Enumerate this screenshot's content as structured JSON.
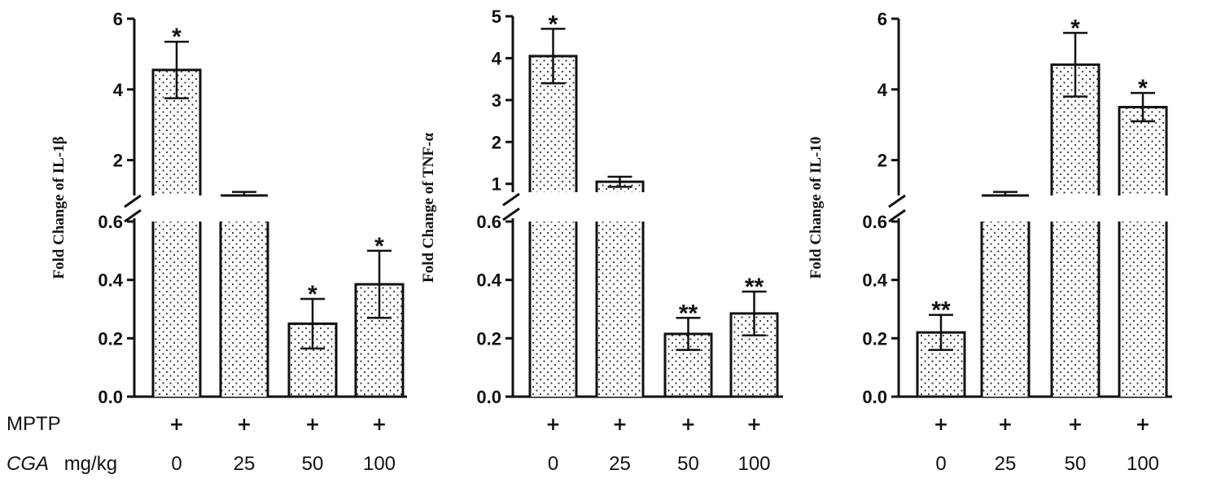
{
  "conditions": {
    "mptp_label": "MPTP",
    "cga_label_italic": "CGA",
    "cga_label_unit": "mg/kg",
    "mptp_marks": [
      "+",
      "+",
      "+",
      "+"
    ]
  },
  "chart_data": [
    {
      "type": "bar",
      "ylabel": "Fold Change of IL-1β",
      "categories": [
        "0",
        "25",
        "50",
        "100"
      ],
      "values": [
        4.55,
        1.0,
        0.25,
        0.385
      ],
      "error": [
        0.8,
        0.1,
        0.085,
        0.115
      ],
      "significance": [
        "*",
        "",
        "*",
        "*"
      ],
      "broken_axis": true,
      "lower_segment": {
        "ylim": [
          0,
          0.6
        ],
        "ticks": [
          "0.0",
          "0.2",
          "0.4",
          "0.6"
        ]
      },
      "upper_segment": {
        "ylim": [
          1,
          6
        ],
        "ticks": [
          "2",
          "4",
          "6"
        ]
      }
    },
    {
      "type": "bar",
      "ylabel": "Fold Change of TNF-α",
      "categories": [
        "0",
        "25",
        "50",
        "100"
      ],
      "values": [
        4.05,
        1.05,
        0.215,
        0.285
      ],
      "error": [
        0.65,
        0.12,
        0.055,
        0.075
      ],
      "significance": [
        "*",
        "",
        "**",
        "**"
      ],
      "broken_axis": true,
      "lower_segment": {
        "ylim": [
          0,
          0.6
        ],
        "ticks": [
          "0.0",
          "0.2",
          "0.4",
          "0.6"
        ]
      },
      "upper_segment": {
        "ylim": [
          0.8,
          5
        ],
        "ticks": [
          "1",
          "2",
          "3",
          "4",
          "5"
        ]
      }
    },
    {
      "type": "bar",
      "ylabel": "Fold Change of IL-10",
      "categories": [
        "0",
        "25",
        "50",
        "100"
      ],
      "values": [
        0.22,
        1.0,
        4.7,
        3.5
      ],
      "error": [
        0.06,
        0.1,
        0.9,
        0.4
      ],
      "significance": [
        "**",
        "",
        "*",
        "*"
      ],
      "broken_axis": true,
      "lower_segment": {
        "ylim": [
          0,
          0.6
        ],
        "ticks": [
          "0.0",
          "0.2",
          "0.4",
          "0.6"
        ]
      },
      "upper_segment": {
        "ylim": [
          1,
          6
        ],
        "ticks": [
          "2",
          "4",
          "6"
        ]
      }
    }
  ]
}
